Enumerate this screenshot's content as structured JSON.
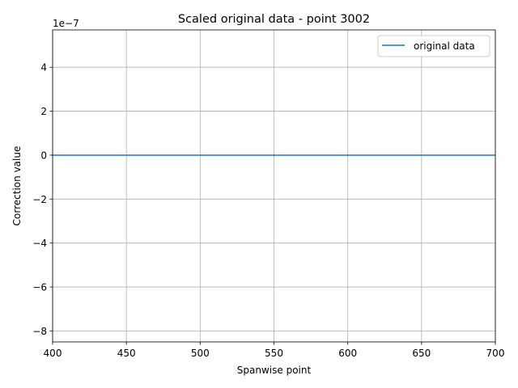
{
  "chart_data": {
    "type": "line",
    "title": "Scaled original data - point 3002",
    "xlabel": "Spanwise point",
    "ylabel": "Correction value",
    "xlim": [
      400,
      700
    ],
    "ylim": [
      -8.5e-07,
      5.7e-07
    ],
    "x_ticks": [
      400,
      450,
      500,
      550,
      600,
      650,
      700
    ],
    "x_tick_labels": [
      "400",
      "450",
      "500",
      "550",
      "600",
      "650",
      "700"
    ],
    "y_ticks": [
      -8e-07,
      -6e-07,
      -4e-07,
      -2e-07,
      0,
      2e-07,
      4e-07
    ],
    "y_tick_labels": [
      "−8",
      "−6",
      "−4",
      "−2",
      "0",
      "2",
      "4"
    ],
    "y_offset_label": "1e−7",
    "grid": true,
    "legend_position": "upper right",
    "series": [
      {
        "name": "original data",
        "color": "#1f77b4",
        "x": [
          400,
          700
        ],
        "y": [
          0,
          0
        ]
      }
    ]
  }
}
